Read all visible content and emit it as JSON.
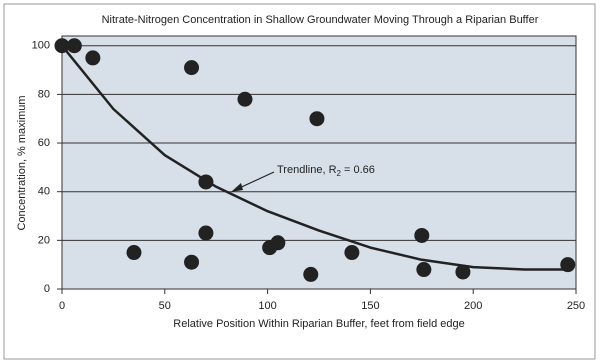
{
  "chart_data": {
    "type": "scatter",
    "title": "Nitrate-Nitrogen Concentration in Shallow Groundwater Moving Through a Riparian Buffer",
    "x_label": "Relative Position Within Riparian Buffer, feet from field edge",
    "y_label": "Concentration, % maximum",
    "x": [
      0,
      6,
      15,
      35,
      63,
      63,
      70,
      70,
      89,
      101,
      105,
      124,
      121,
      141,
      175,
      176,
      195,
      246
    ],
    "values": [
      100,
      100,
      95,
      15,
      91,
      11,
      44,
      23,
      78,
      17,
      19,
      70,
      6,
      15,
      22,
      8,
      7,
      10
    ],
    "color": "#222222",
    "trendline": {
      "x": [
        0,
        25,
        50,
        75,
        100,
        125,
        150,
        175,
        200,
        225,
        245
      ],
      "values": [
        100,
        74,
        55,
        42,
        32,
        24,
        17,
        12,
        9,
        8,
        8
      ],
      "color": "#222222"
    },
    "annotation": {
      "text": "Trendline, R",
      "subscript": "2",
      "suffix": " = 0.66"
    },
    "xlim": [
      0,
      250
    ],
    "xticks": [
      0,
      50,
      100,
      150,
      200,
      250
    ],
    "ylim": [
      0,
      104
    ],
    "yticks": [
      0,
      20,
      40,
      60,
      80,
      100
    ],
    "grid": true,
    "background": "#d7dfe9"
  }
}
